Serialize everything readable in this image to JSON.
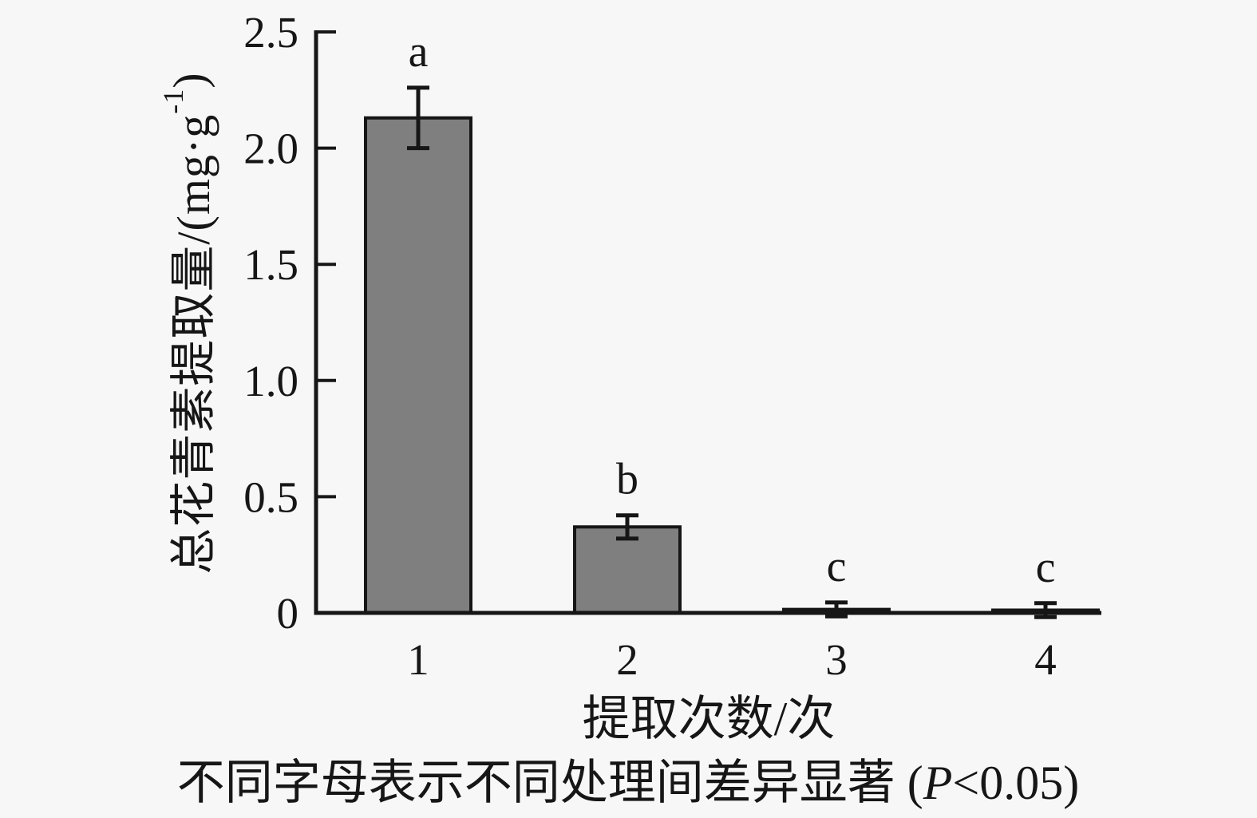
{
  "page": {
    "background": "#f7f7f7",
    "text_color": "#161616"
  },
  "chart_data": {
    "type": "bar",
    "title": "",
    "categories": [
      "1",
      "2",
      "3",
      "4"
    ],
    "values": [
      2.13,
      0.37,
      0.015,
      0.012
    ],
    "error_bars": [
      0.13,
      0.05,
      0.03,
      0.03
    ],
    "sig_letters": [
      "a",
      "b",
      "c",
      "c"
    ],
    "xlabel": "提取次数/次",
    "ylabel": "总花青素提取量/(mg·g⁻¹)",
    "ylabel_parts": {
      "pre": "总花青素提取量/(mg·g",
      "sup": "-1",
      "post": ")"
    },
    "ylim": [
      0,
      2.5
    ],
    "yticks": [
      0,
      0.5,
      1.0,
      1.5,
      2.0,
      2.5
    ],
    "ytick_labels": [
      "0",
      "0.5",
      "1.0",
      "1.5",
      "2.0",
      "2.5"
    ],
    "grid": false,
    "legend": null,
    "bar_fill": "#7f7f7f",
    "bar_edge": "#161616",
    "axis_color": "#161616"
  },
  "caption": {
    "pre": "不同字母表示不同处理间差异显著 (",
    "italic": "P",
    "post": "<0.05)"
  }
}
